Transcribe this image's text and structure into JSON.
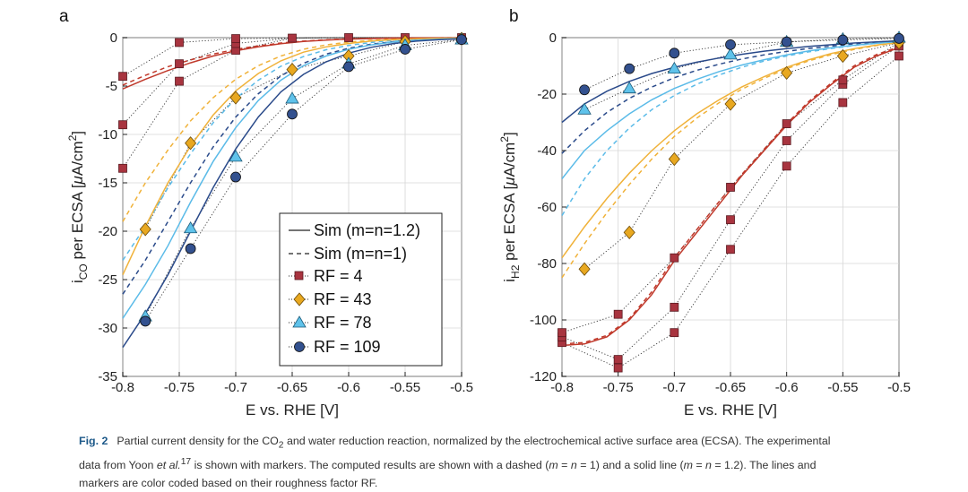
{
  "chart_data": [
    {
      "panel": "a",
      "type": "line",
      "ylabel": "i_CO per ECSA [μA/cm^2]",
      "ylabel_parts": {
        "main": "i",
        "sub": "CO",
        "rest": " per ECSA [",
        "mu": "μ",
        "unit": "A/cm",
        "sup": "2",
        "close": "]"
      },
      "xlabel": "E vs. RHE [V]",
      "xlim": [
        -0.8,
        -0.5
      ],
      "ylim": [
        -35,
        0
      ],
      "xticks": [
        -0.8,
        -0.75,
        -0.7,
        -0.65,
        -0.6,
        -0.55,
        -0.5
      ],
      "xtick_labels": [
        "-0.8",
        "-0.75",
        "-0.7",
        "-0.65",
        "-0.6",
        "-0.55",
        "-0.5"
      ],
      "yticks": [
        0,
        -5,
        -10,
        -15,
        -20,
        -25,
        -30,
        -35
      ],
      "ytick_labels": [
        "0",
        "-5",
        "-10",
        "-15",
        "-20",
        "-25",
        "-30",
        "-35"
      ],
      "x_sim": [
        -0.8,
        -0.78,
        -0.76,
        -0.74,
        -0.72,
        -0.7,
        -0.68,
        -0.66,
        -0.64,
        -0.62,
        -0.6,
        -0.58,
        -0.56,
        -0.54,
        -0.52,
        -0.5
      ],
      "sim_solid": [
        {
          "rf": "RF = 4",
          "values": [
            -5.3,
            -4.3,
            -3.4,
            -2.6,
            -1.9,
            -1.35,
            -0.95,
            -0.62,
            -0.4,
            -0.25,
            -0.15,
            -0.09,
            -0.05,
            -0.03,
            -0.02,
            -0.01
          ]
        },
        {
          "rf": "RF = 43",
          "values": [
            -24.5,
            -19.5,
            -15.0,
            -11.2,
            -8.0,
            -5.5,
            -3.7,
            -2.4,
            -1.5,
            -0.95,
            -0.6,
            -0.35,
            -0.2,
            -0.12,
            -0.07,
            -0.04
          ]
        },
        {
          "rf": "RF = 78",
          "values": [
            -29.0,
            -25.5,
            -21.5,
            -17.0,
            -12.8,
            -9.3,
            -6.5,
            -4.4,
            -2.9,
            -1.9,
            -1.2,
            -0.75,
            -0.45,
            -0.27,
            -0.16,
            -0.09
          ]
        },
        {
          "rf": "RF = 109",
          "values": [
            -32.0,
            -28.5,
            -24.5,
            -20.0,
            -15.5,
            -11.5,
            -8.2,
            -5.6,
            -3.8,
            -2.5,
            -1.6,
            -1.0,
            -0.6,
            -0.36,
            -0.21,
            -0.12
          ]
        }
      ],
      "sim_dashed": [
        {
          "rf": "RF = 4",
          "values": [
            -4.9,
            -3.9,
            -3.0,
            -2.3,
            -1.7,
            -1.2,
            -0.85,
            -0.56,
            -0.36,
            -0.22,
            -0.13,
            -0.08,
            -0.05,
            -0.03,
            -0.02,
            -0.01
          ]
        },
        {
          "rf": "RF = 43",
          "values": [
            -19.0,
            -15.0,
            -11.6,
            -8.6,
            -6.2,
            -4.3,
            -2.9,
            -1.9,
            -1.2,
            -0.75,
            -0.46,
            -0.28,
            -0.17,
            -0.1,
            -0.06,
            -0.03
          ]
        },
        {
          "rf": "RF = 78",
          "values": [
            -23.0,
            -19.5,
            -15.5,
            -12.0,
            -8.8,
            -6.3,
            -4.4,
            -2.95,
            -1.95,
            -1.25,
            -0.8,
            -0.5,
            -0.3,
            -0.18,
            -0.11,
            -0.06
          ]
        },
        {
          "rf": "RF = 109",
          "values": [
            -26.5,
            -23.0,
            -19.0,
            -15.0,
            -11.3,
            -8.2,
            -5.8,
            -3.95,
            -2.65,
            -1.7,
            -1.1,
            -0.68,
            -0.41,
            -0.25,
            -0.15,
            -0.08
          ]
        }
      ],
      "markers": [
        {
          "rf": "RF = 4",
          "x": [
            -0.8,
            -0.8,
            -0.8,
            -0.75,
            -0.75,
            -0.75,
            -0.7,
            -0.7,
            -0.7,
            -0.65,
            -0.6,
            -0.55,
            -0.5
          ],
          "y": [
            -13.5,
            -9.0,
            -4.0,
            -4.5,
            -2.7,
            -0.5,
            -1.3,
            -0.6,
            -0.1,
            -0.05,
            0.0,
            0.0,
            0.0
          ]
        },
        {
          "rf": "RF = 43",
          "x": [
            -0.78,
            -0.74,
            -0.7,
            -0.65,
            -0.6,
            -0.55,
            -0.5
          ],
          "y": [
            -19.8,
            -10.9,
            -6.2,
            -3.3,
            -1.9,
            -0.4,
            -0.1
          ]
        },
        {
          "rf": "RF = 78",
          "x": [
            -0.78,
            -0.74,
            -0.7,
            -0.65,
            -0.6,
            -0.55,
            -0.5
          ],
          "y": [
            -28.8,
            -19.7,
            -12.3,
            -6.3,
            -2.7,
            -0.8,
            -0.2
          ]
        },
        {
          "rf": "RF = 109",
          "x": [
            -0.78,
            -0.74,
            -0.7,
            -0.65,
            -0.6,
            -0.55,
            -0.5
          ],
          "y": [
            -29.3,
            -21.8,
            -14.4,
            -7.9,
            -3.0,
            -1.2,
            -0.2
          ]
        }
      ]
    },
    {
      "panel": "b",
      "type": "line",
      "ylabel": "i_H2 per ECSA [μA/cm^2]",
      "ylabel_parts": {
        "main": "i",
        "sub": "H2",
        "rest": " per ECSA [",
        "mu": "μ",
        "unit": "A/cm",
        "sup": "2",
        "close": "]"
      },
      "xlabel": "E vs. RHE [V]",
      "xlim": [
        -0.8,
        -0.5
      ],
      "ylim": [
        -120,
        0
      ],
      "xticks": [
        -0.8,
        -0.75,
        -0.7,
        -0.65,
        -0.6,
        -0.55,
        -0.5
      ],
      "xtick_labels": [
        "-0.8",
        "-0.75",
        "-0.7",
        "-0.65",
        "-0.6",
        "-0.55",
        "-0.5"
      ],
      "yticks": [
        0,
        -20,
        -40,
        -60,
        -80,
        -100,
        -120
      ],
      "ytick_labels": [
        "0",
        "-20",
        "-40",
        "-60",
        "-80",
        "-100",
        "-120"
      ],
      "x_sim": [
        -0.8,
        -0.78,
        -0.76,
        -0.74,
        -0.72,
        -0.7,
        -0.68,
        -0.66,
        -0.64,
        -0.62,
        -0.6,
        -0.58,
        -0.56,
        -0.54,
        -0.52,
        -0.5
      ],
      "sim_solid": [
        {
          "rf": "RF = 4",
          "values": [
            -109.0,
            -108.5,
            -106.0,
            -100.0,
            -91.0,
            -79.0,
            -69.0,
            -59.0,
            -49.0,
            -40.0,
            -31.0,
            -23.0,
            -16.5,
            -10.5,
            -6.5,
            -3.5
          ]
        },
        {
          "rf": "RF = 43",
          "values": [
            -78.0,
            -67.0,
            -57.0,
            -48.0,
            -40.0,
            -33.0,
            -27.0,
            -22.0,
            -17.5,
            -13.8,
            -10.5,
            -7.8,
            -5.6,
            -3.9,
            -2.6,
            -1.7
          ]
        },
        {
          "rf": "RF = 78",
          "values": [
            -50.0,
            -40.0,
            -33.0,
            -27.0,
            -22.0,
            -18.0,
            -14.8,
            -12.0,
            -9.7,
            -7.8,
            -6.1,
            -4.7,
            -3.6,
            -2.7,
            -2.0,
            -1.4
          ]
        },
        {
          "rf": "RF = 109",
          "values": [
            -30.0,
            -23.5,
            -19.0,
            -15.5,
            -12.7,
            -10.5,
            -8.7,
            -7.2,
            -5.9,
            -4.8,
            -3.9,
            -3.1,
            -2.5,
            -1.9,
            -1.5,
            -1.1
          ]
        }
      ],
      "sim_dashed": [
        {
          "rf": "RF = 4",
          "values": [
            -108.5,
            -108.0,
            -105.5,
            -99.5,
            -90.0,
            -78.0,
            -68.0,
            -58.0,
            -48.5,
            -39.5,
            -30.5,
            -22.5,
            -16.0,
            -10.0,
            -6.0,
            -3.2
          ]
        },
        {
          "rf": "RF = 43",
          "values": [
            -85.0,
            -73.0,
            -62.0,
            -52.0,
            -43.0,
            -35.0,
            -28.5,
            -23.0,
            -18.3,
            -14.4,
            -11.0,
            -8.2,
            -6.0,
            -4.2,
            -2.8,
            -1.8
          ]
        },
        {
          "rf": "RF = 78",
          "values": [
            -63.0,
            -50.0,
            -40.0,
            -32.0,
            -25.5,
            -20.5,
            -16.5,
            -13.2,
            -10.5,
            -8.3,
            -6.5,
            -5.0,
            -3.8,
            -2.8,
            -2.0,
            -1.4
          ]
        },
        {
          "rf": "RF = 109",
          "values": [
            -41.0,
            -33.0,
            -26.5,
            -21.5,
            -17.5,
            -14.2,
            -11.6,
            -9.4,
            -7.6,
            -6.1,
            -4.9,
            -3.8,
            -3.0,
            -2.2,
            -1.6,
            -1.1
          ]
        }
      ],
      "markers": [
        {
          "rf": "RF = 4",
          "x": [
            -0.8,
            -0.8,
            -0.8,
            -0.75,
            -0.75,
            -0.75,
            -0.7,
            -0.7,
            -0.7,
            -0.65,
            -0.65,
            -0.65,
            -0.6,
            -0.6,
            -0.6,
            -0.55,
            -0.55,
            -0.55,
            -0.5,
            -0.5,
            -0.5
          ],
          "y": [
            -108.0,
            -106.0,
            -104.5,
            -117.0,
            -114.0,
            -98.0,
            -104.5,
            -95.5,
            -78.0,
            -75.0,
            -64.5,
            -53.0,
            -45.5,
            -36.5,
            -30.5,
            -23.0,
            -16.5,
            -15.0,
            -6.5,
            -3.0,
            -1.5
          ]
        },
        {
          "rf": "RF = 43",
          "x": [
            -0.78,
            -0.74,
            -0.7,
            -0.65,
            -0.6,
            -0.55,
            -0.5
          ],
          "y": [
            -82.0,
            -69.0,
            -43.0,
            -23.5,
            -12.5,
            -6.5,
            -1.8
          ]
        },
        {
          "rf": "RF = 78",
          "x": [
            -0.78,
            -0.74,
            -0.7,
            -0.65,
            -0.6,
            -0.55,
            -0.5
          ],
          "y": [
            -25.5,
            -18.0,
            -11.0,
            -6.0,
            -1.5,
            -0.5,
            0.0
          ]
        },
        {
          "rf": "RF = 109",
          "x": [
            -0.78,
            -0.74,
            -0.7,
            -0.65,
            -0.6,
            -0.55,
            -0.5
          ],
          "y": [
            -18.5,
            -11.0,
            -5.5,
            -2.5,
            -1.5,
            -0.8,
            -0.3
          ]
        }
      ]
    }
  ],
  "series_styles": {
    "RF = 4": {
      "line": "#c0392b",
      "fill": "#a8343f",
      "marker": "square"
    },
    "RF = 43": {
      "line": "#f0b23a",
      "fill": "#e8a820",
      "marker": "diamond"
    },
    "RF = 78": {
      "line": "#5bbbe8",
      "fill": "#5fc2ea",
      "marker": "triangle"
    },
    "RF = 109": {
      "line": "#2a4a8a",
      "fill": "#33518f",
      "marker": "circle"
    }
  },
  "legend": {
    "sim_solid": "Sim (m=n=1.2)",
    "sim_dashed": "Sim (m=n=1)",
    "entries": [
      "RF = 4",
      "RF = 43",
      "RF = 78",
      "RF = 109"
    ]
  },
  "caption": {
    "label": "Fig. 2",
    "line1_a": "Partial current density for the CO",
    "line1_sub": "2",
    "line1_b": " and water reduction reaction, normalized by the electrochemical active surface area (ECSA). The experimental",
    "line2_a": "data from Yoon ",
    "line2_etal": "et al.",
    "line2_sup": "17",
    "line2_b": " is shown with markers. The computed results are shown with a dashed (",
    "m1": "m",
    "eq1": " = ",
    "n1": "n",
    "eq1b": " = 1) and a solid line (",
    "m2": "m",
    "eq2": " = ",
    "n2": "n",
    "eq2b": " = 1.2). The lines and",
    "line3": "markers are color coded based on their roughness factor RF."
  }
}
